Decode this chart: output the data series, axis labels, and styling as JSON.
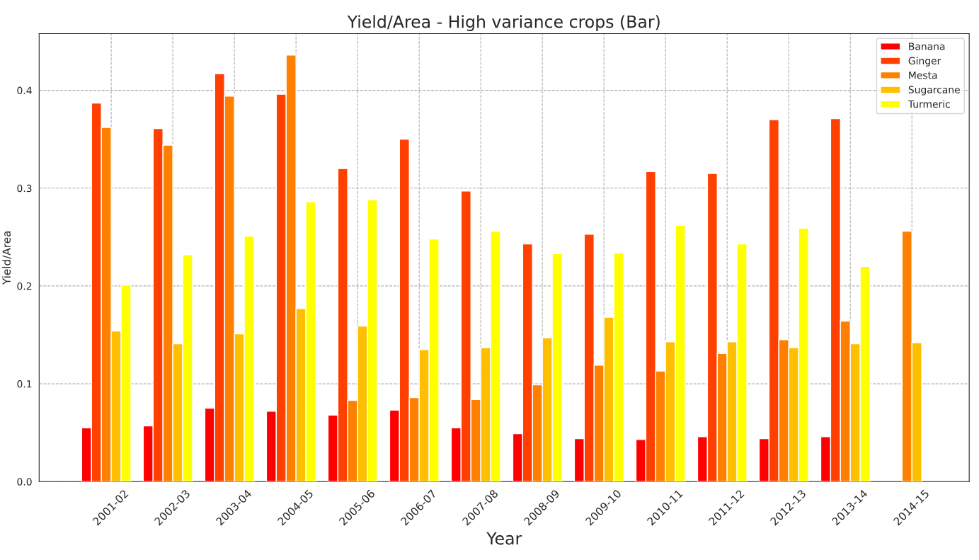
{
  "chart_data": {
    "type": "bar",
    "title": "Yield/Area - High variance crops (Bar)",
    "xlabel": "Year",
    "ylabel": "Yield/Area",
    "categories": [
      "2001-02",
      "2002-03",
      "2003-04",
      "2004-05",
      "2005-06",
      "2006-07",
      "2007-08",
      "2008-09",
      "2009-10",
      "2010-11",
      "2011-12",
      "2012-13",
      "2013-14",
      "2014-15"
    ],
    "series": [
      {
        "name": "Banana",
        "color": "#ff0000",
        "values": [
          0.055,
          0.057,
          0.075,
          0.072,
          0.068,
          0.073,
          0.055,
          0.049,
          0.044,
          0.043,
          0.046,
          0.044,
          0.046,
          null
        ]
      },
      {
        "name": "Ginger",
        "color": "#ff4000",
        "values": [
          0.387,
          0.361,
          0.417,
          0.396,
          0.32,
          0.35,
          0.297,
          0.243,
          0.253,
          0.317,
          0.315,
          0.37,
          0.371,
          null
        ]
      },
      {
        "name": "Mesta",
        "color": "#ff8000",
        "values": [
          0.362,
          0.344,
          0.394,
          0.436,
          0.083,
          0.086,
          0.084,
          0.099,
          0.119,
          0.113,
          0.131,
          0.145,
          0.164,
          0.256
        ]
      },
      {
        "name": "Sugarcane",
        "color": "#ffbf00",
        "values": [
          0.154,
          0.141,
          0.151,
          0.177,
          0.159,
          0.135,
          0.137,
          0.147,
          0.168,
          0.143,
          0.143,
          0.137,
          0.141,
          0.142
        ]
      },
      {
        "name": "Turmeric",
        "color": "#ffff00",
        "values": [
          0.201,
          0.232,
          0.251,
          0.286,
          0.288,
          0.248,
          0.256,
          0.233,
          0.234,
          0.262,
          0.243,
          0.259,
          0.22,
          null
        ]
      }
    ],
    "ylim": [
      0,
      0.458
    ],
    "yticks": [
      {
        "value": 0,
        "label": "0.0"
      },
      0.1,
      0.2,
      0.3,
      0.4
    ],
    "grid": true,
    "legend": "top right"
  }
}
